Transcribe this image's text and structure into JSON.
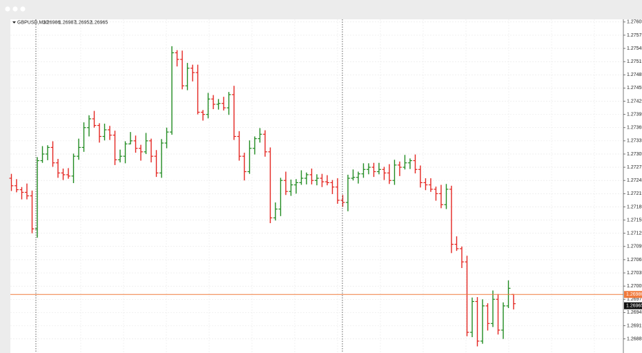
{
  "chart_data": {
    "type": "ohlc",
    "title": "GBPUSD,M30",
    "up_color": "#1f8a1f",
    "down_color": "#e3231e",
    "ylim": [
      1.26853,
      1.27611
    ],
    "yticks": [
      1.27605,
      1.27575,
      1.27545,
      1.27515,
      1.27485,
      1.27455,
      1.27425,
      1.27395,
      1.27365,
      1.27335,
      1.27305,
      1.27275,
      1.27245,
      1.27215,
      1.27185,
      1.27155,
      1.27125,
      1.27095,
      1.27065,
      1.27035,
      1.27005,
      1.26975,
      1.26945,
      1.26915,
      1.26885
    ],
    "grid": true,
    "price_lines": [
      {
        "value": 1.26986,
        "color": "#f07a3c"
      }
    ],
    "open": [
      1.2725,
      1.27233,
      1.27224,
      1.27218,
      1.2721,
      1.27135,
      1.2729,
      1.27305,
      1.2732,
      1.27285,
      1.27262,
      1.27258,
      1.27255,
      1.273,
      1.2732,
      1.27365,
      1.27385,
      1.2737,
      1.27345,
      1.2736,
      1.27348,
      1.27292,
      1.273,
      1.27328,
      1.27335,
      1.27318,
      1.2731,
      1.27335,
      1.273,
      1.27262,
      1.2733,
      1.27355,
      1.27535,
      1.2752,
      1.2746,
      1.275,
      1.2749,
      1.274,
      1.27395,
      1.2743,
      1.27418,
      1.2742,
      1.2741,
      1.2744,
      1.27345,
      1.273,
      1.27265,
      1.27318,
      1.2734,
      1.2735,
      1.2731,
      1.2716,
      1.2718,
      1.27245,
      1.2722,
      1.27235,
      1.2724,
      1.2725,
      1.27258,
      1.27245,
      1.2725,
      1.27242,
      1.2724,
      1.2723,
      1.272,
      1.27195,
      1.2725,
      1.27252,
      1.2726,
      1.2727,
      1.27275,
      1.27265,
      1.2727,
      1.27262,
      1.27245,
      1.2728,
      1.27275,
      1.27285,
      1.2729,
      1.2727,
      1.2724,
      1.27235,
      1.27225,
      1.27215,
      1.2719,
      1.27225,
      1.271,
      1.2709,
      1.2706,
      1.269,
      1.2697,
      1.2688,
      1.2696,
      1.2692,
      1.26975,
      1.26905,
      1.2696,
      1.26986
    ],
    "high": [
      1.2726,
      1.27248,
      1.2723,
      1.27238,
      1.27222,
      1.27298,
      1.27323,
      1.27325,
      1.27334,
      1.27294,
      1.27272,
      1.27273,
      1.27306,
      1.2734,
      1.27377,
      1.27393,
      1.27403,
      1.27375,
      1.27374,
      1.27369,
      1.27358,
      1.27315,
      1.27334,
      1.27355,
      1.27347,
      1.27326,
      1.27353,
      1.2734,
      1.27314,
      1.27339,
      1.27365,
      1.2755,
      1.27541,
      1.2754,
      1.27512,
      1.27508,
      1.27508,
      1.27405,
      1.27444,
      1.27439,
      1.2743,
      1.27435,
      1.27446,
      1.2746,
      1.27357,
      1.27308,
      1.27336,
      1.27345,
      1.27364,
      1.27359,
      1.2732,
      1.27195,
      1.27251,
      1.27265,
      1.27247,
      1.27248,
      1.27268,
      1.27263,
      1.27272,
      1.27259,
      1.2726,
      1.27257,
      1.27246,
      1.2725,
      1.27212,
      1.27258,
      1.2727,
      1.27265,
      1.27284,
      1.27284,
      1.27285,
      1.27285,
      1.27276,
      1.27282,
      1.27292,
      1.27288,
      1.27303,
      1.27295,
      1.27304,
      1.27279,
      1.2725,
      1.2725,
      1.27231,
      1.27235,
      1.27237,
      1.27233,
      1.27118,
      1.27095,
      1.27074,
      1.26979,
      1.2698,
      1.26975,
      1.26966,
      1.26995,
      1.26987,
      1.26968,
      1.27018,
      1.26987
    ],
    "low": [
      1.27221,
      1.27218,
      1.27202,
      1.27202,
      1.27125,
      1.27115,
      1.27285,
      1.27291,
      1.27276,
      1.27251,
      1.27246,
      1.27249,
      1.27239,
      1.27292,
      1.2731,
      1.27345,
      1.27365,
      1.27331,
      1.27336,
      1.27337,
      1.2728,
      1.27286,
      1.27284,
      1.27327,
      1.27308,
      1.2729,
      1.27305,
      1.27286,
      1.27253,
      1.27251,
      1.27318,
      1.27349,
      1.27504,
      1.27452,
      1.2745,
      1.2747,
      1.27395,
      1.27381,
      1.27386,
      1.27407,
      1.27406,
      1.27404,
      1.27394,
      1.27337,
      1.2729,
      1.27245,
      1.2726,
      1.27304,
      1.27331,
      1.27299,
      1.27148,
      1.27154,
      1.27164,
      1.27212,
      1.2721,
      1.27215,
      1.27235,
      1.27236,
      1.27236,
      1.27234,
      1.2723,
      1.27234,
      1.27214,
      1.27192,
      1.27185,
      1.27175,
      1.27245,
      1.27238,
      1.27251,
      1.27259,
      1.27253,
      1.27259,
      1.27246,
      1.27237,
      1.27235,
      1.27255,
      1.2727,
      1.27271,
      1.27261,
      1.27229,
      1.27223,
      1.27219,
      1.27199,
      1.27182,
      1.2718,
      1.2708,
      1.27085,
      1.27046,
      1.26891,
      1.26889,
      1.26868,
      1.26874,
      1.26904,
      1.26912,
      1.26895,
      1.26885,
      1.26955,
      1.26952
    ],
    "close": [
      1.27233,
      1.27224,
      1.27218,
      1.2721,
      1.27135,
      1.2729,
      1.27305,
      1.2732,
      1.27285,
      1.27262,
      1.27258,
      1.27255,
      1.273,
      1.2732,
      1.27365,
      1.27385,
      1.2737,
      1.27345,
      1.2736,
      1.27348,
      1.27292,
      1.273,
      1.27328,
      1.27335,
      1.27318,
      1.2731,
      1.27335,
      1.273,
      1.27262,
      1.2733,
      1.27355,
      1.27535,
      1.2752,
      1.2746,
      1.275,
      1.2749,
      1.274,
      1.27395,
      1.2743,
      1.27418,
      1.2742,
      1.2741,
      1.2744,
      1.27345,
      1.273,
      1.27265,
      1.27318,
      1.2734,
      1.2735,
      1.2731,
      1.2716,
      1.2718,
      1.27245,
      1.2722,
      1.27235,
      1.2724,
      1.2725,
      1.27258,
      1.27245,
      1.2725,
      1.27242,
      1.2724,
      1.2723,
      1.272,
      1.27195,
      1.2725,
      1.27252,
      1.2726,
      1.2727,
      1.27275,
      1.27265,
      1.2727,
      1.27262,
      1.27245,
      1.2728,
      1.27275,
      1.27285,
      1.2729,
      1.2727,
      1.2724,
      1.27235,
      1.27225,
      1.27215,
      1.2719,
      1.27225,
      1.271,
      1.2709,
      1.2706,
      1.269,
      1.2697,
      1.2688,
      1.2696,
      1.2692,
      1.26975,
      1.26905,
      1.2696,
      1.27,
      1.26965
    ]
  }
}
